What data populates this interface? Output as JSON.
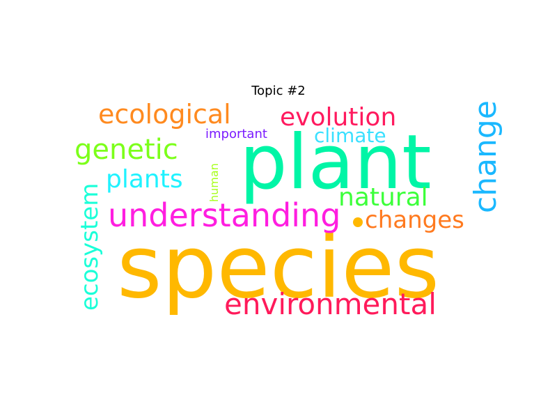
{
  "title": "Topic #2",
  "words": [
    {
      "text": "species",
      "color": "#ffb800"
    },
    {
      "text": "plant",
      "color": "#00f5a6"
    },
    {
      "text": "understanding",
      "color": "#ff1ee0"
    },
    {
      "text": "environmental",
      "color": "#ff1a5a"
    },
    {
      "text": "ecological",
      "color": "#ff8a1f"
    },
    {
      "text": "evolution",
      "color": "#ff1a5e"
    },
    {
      "text": "genetic",
      "color": "#7cff1a"
    },
    {
      "text": "plants",
      "color": "#1ff2ff"
    },
    {
      "text": "climate",
      "color": "#3ae0ff"
    },
    {
      "text": "natural",
      "color": "#3cff3a"
    },
    {
      "text": "changes",
      "color": "#ff7a1f"
    },
    {
      "text": "change",
      "color": "#1ab8ff"
    },
    {
      "text": "ecosystem",
      "color": "#1affd8"
    },
    {
      "text": "important",
      "color": "#7a1aff"
    },
    {
      "text": "human",
      "color": "#a6ff1a"
    }
  ],
  "dot_color": "#ffb800"
}
